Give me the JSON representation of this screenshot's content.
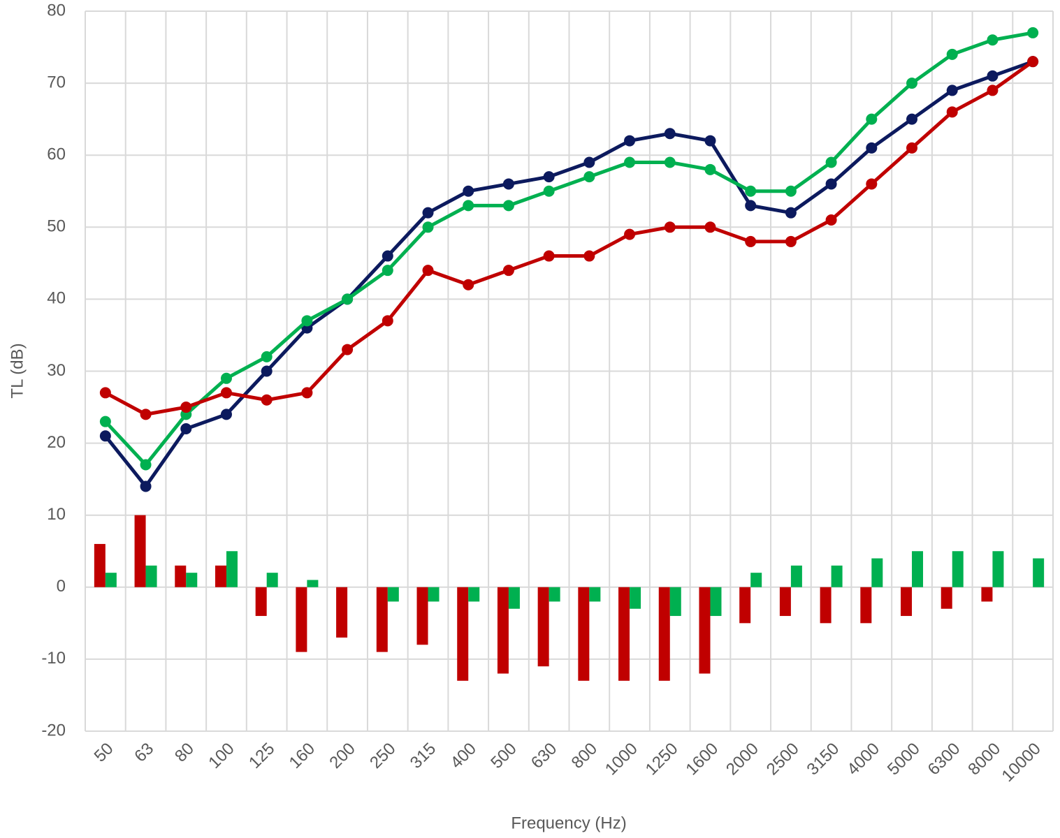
{
  "chart_data": {
    "type": "combo",
    "x_label": "Frequency (Hz)",
    "y_label": "TL (dB)",
    "categories": [
      "50",
      "63",
      "80",
      "100",
      "125",
      "160",
      "200",
      "250",
      "315",
      "400",
      "500",
      "630",
      "800",
      "1000",
      "1250",
      "1600",
      "2000",
      "2500",
      "3150",
      "4000",
      "5000",
      "6300",
      "8000",
      "10000"
    ],
    "series": [
      {
        "type": "bar",
        "color": "#c00000",
        "values": [
          6,
          10,
          3,
          3,
          -4,
          -9,
          -7,
          -9,
          -8,
          -13,
          -12,
          -11,
          -13,
          -13,
          -13,
          -12,
          -5,
          -4,
          -5,
          -5,
          -4,
          -3,
          -2,
          0
        ]
      },
      {
        "type": "bar",
        "color": "#00b050",
        "values": [
          2,
          3,
          2,
          5,
          2,
          1,
          0,
          -2,
          -2,
          -2,
          -3,
          -2,
          -2,
          -3,
          -4,
          -4,
          2,
          3,
          3,
          4,
          5,
          5,
          5,
          4
        ]
      },
      {
        "type": "line",
        "color": "#0c1a5e",
        "values": [
          21,
          14,
          22,
          24,
          30,
          36,
          40,
          46,
          52,
          55,
          56,
          57,
          59,
          62,
          63,
          62,
          53,
          52,
          56,
          61,
          65,
          69,
          71,
          73
        ]
      },
      {
        "type": "line",
        "color": "#00b050",
        "values": [
          23,
          17,
          24,
          29,
          32,
          37,
          40,
          44,
          50,
          53,
          53,
          55,
          57,
          59,
          59,
          58,
          55,
          55,
          59,
          65,
          70,
          74,
          76,
          77
        ]
      },
      {
        "type": "line",
        "color": "#c00000",
        "values": [
          27,
          24,
          25,
          27,
          26,
          27,
          33,
          37,
          44,
          42,
          44,
          46,
          46,
          49,
          50,
          50,
          48,
          48,
          51,
          56,
          61,
          66,
          69,
          73
        ]
      }
    ],
    "ylim": [
      -20,
      80
    ],
    "yticks": [
      -20,
      -10,
      0,
      10,
      20,
      30,
      40,
      50,
      60,
      70,
      80
    ],
    "grid": true
  }
}
